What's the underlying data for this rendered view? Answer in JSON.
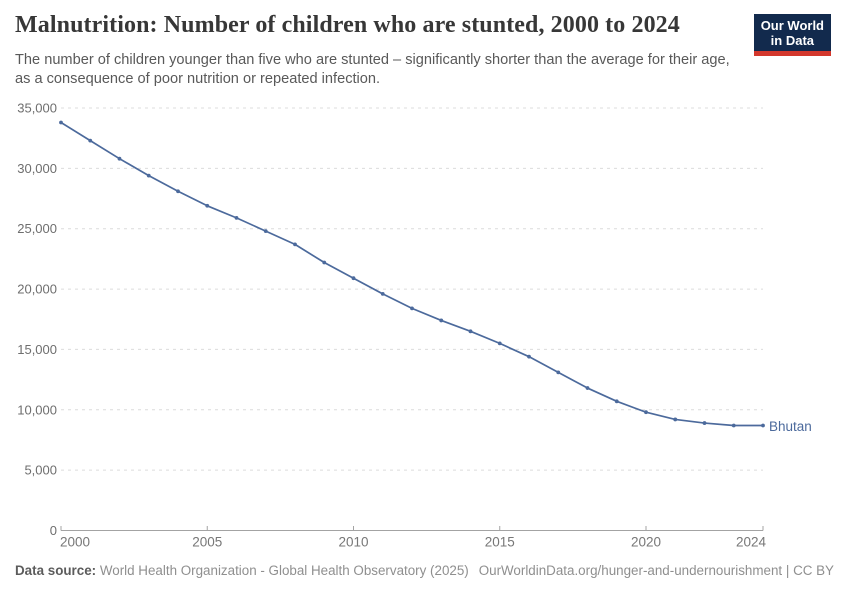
{
  "header": {
    "title": "Malnutrition: Number of children who are stunted, 2000 to 2024",
    "subtitle": "The number of children younger than five who are stunted – significantly shorter than the average for their age, as a consequence of poor nutrition or repeated infection.",
    "logo_line1": "Our World",
    "logo_line2": "in Data"
  },
  "chart_data": {
    "type": "line",
    "title": "Malnutrition: Number of children who are stunted, 2000 to 2024",
    "x": [
      2000,
      2001,
      2002,
      2003,
      2004,
      2005,
      2006,
      2007,
      2008,
      2009,
      2010,
      2011,
      2012,
      2013,
      2014,
      2015,
      2016,
      2017,
      2018,
      2019,
      2020,
      2021,
      2022,
      2023,
      2024
    ],
    "series": [
      {
        "name": "Bhutan",
        "color": "#4c6a9c",
        "values": [
          33800,
          32300,
          30800,
          29400,
          28100,
          26900,
          25900,
          24800,
          23700,
          22200,
          20900,
          19600,
          18400,
          17400,
          16500,
          15500,
          14400,
          13100,
          11800,
          10700,
          9800,
          9200,
          8900,
          8700,
          8700
        ]
      }
    ],
    "xlim": [
      2000,
      2024
    ],
    "ylim": [
      0,
      35000
    ],
    "xticks": [
      2000,
      2005,
      2010,
      2015,
      2020,
      2024
    ],
    "yticks": [
      0,
      5000,
      10000,
      15000,
      20000,
      25000,
      30000,
      35000
    ],
    "xlabel": "",
    "ylabel": "",
    "grid": "horizontal-dashed",
    "grid_color": "#dcdcdc",
    "axis_color": "#a3a3a3",
    "tick_label_color": "#6e6e6e",
    "legend_position": "end-of-line-label"
  },
  "footer": {
    "source_label": "Data source:",
    "source_text": "World Health Organization - Global Health Observatory (2025)",
    "link_text": "OurWorldinData.org/hunger-and-undernourishment | CC BY"
  }
}
